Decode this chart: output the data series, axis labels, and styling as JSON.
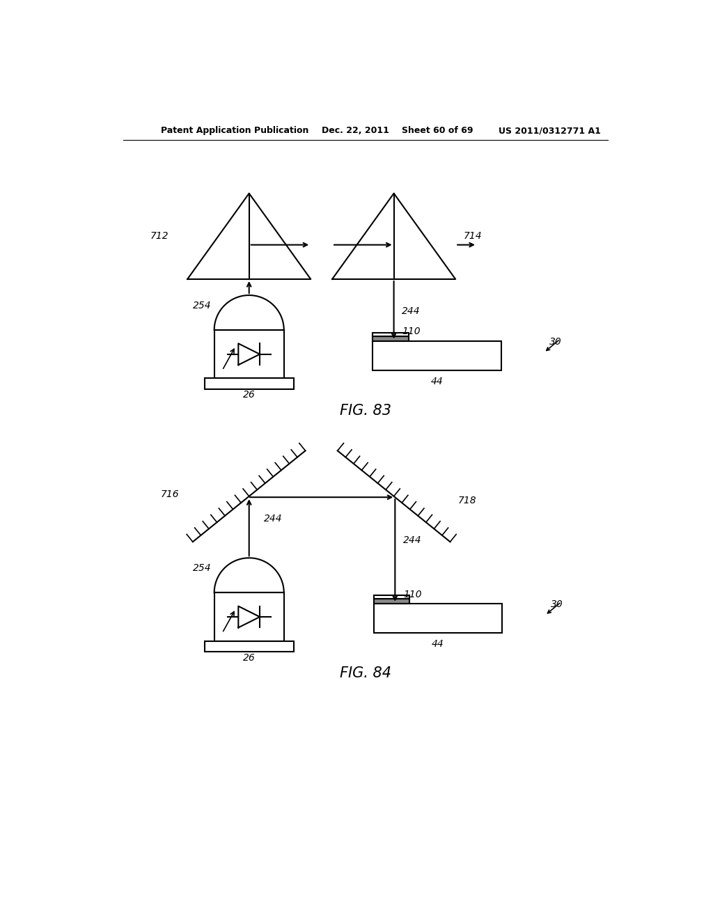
{
  "bg_color": "#ffffff",
  "line_color": "#000000",
  "header_line1": "Patent Application Publication",
  "header_line2": "Dec. 22, 2011",
  "header_line3": "Sheet 60 of 69",
  "header_line4": "US 2011/0312771 A1",
  "fig83_caption": "FIG. 83",
  "fig84_caption": "FIG. 84"
}
